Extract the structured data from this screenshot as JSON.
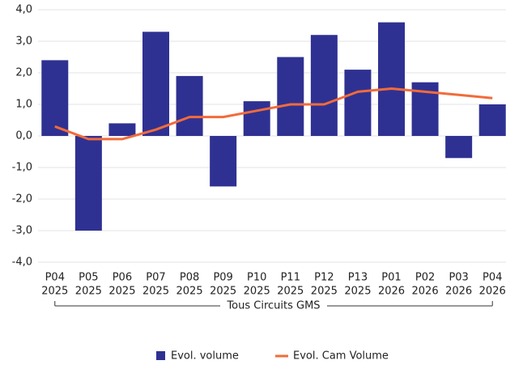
{
  "chart_data": {
    "type": "bar_line",
    "categories": [
      [
        "P04",
        "2025"
      ],
      [
        "P05",
        "2025"
      ],
      [
        "P06",
        "2025"
      ],
      [
        "P07",
        "2025"
      ],
      [
        "P08",
        "2025"
      ],
      [
        "P09",
        "2025"
      ],
      [
        "P10",
        "2025"
      ],
      [
        "P11",
        "2025"
      ],
      [
        "P12",
        "2025"
      ],
      [
        "P13",
        "2025"
      ],
      [
        "P01",
        "2026"
      ],
      [
        "P02",
        "2026"
      ],
      [
        "P03",
        "2026"
      ],
      [
        "P04",
        "2026"
      ]
    ],
    "group_label": "Tous Circuits GMS",
    "series": [
      {
        "name": "Evol. volume",
        "type": "bar",
        "color": "#2f3192",
        "values": [
          2.4,
          -3.0,
          0.4,
          3.3,
          1.9,
          -1.6,
          1.1,
          2.5,
          3.2,
          2.1,
          3.6,
          1.7,
          -0.7,
          1.0
        ]
      },
      {
        "name": "Evol. Cam Volume",
        "type": "line",
        "color": "#f26b3a",
        "values": [
          0.3,
          -0.1,
          -0.1,
          0.2,
          0.6,
          0.6,
          0.8,
          1.0,
          1.0,
          1.4,
          1.5,
          1.4,
          1.3,
          1.2
        ]
      }
    ],
    "ylim": [
      -4,
      4
    ],
    "yticks": [
      {
        "value": -4,
        "label": "-4,0"
      },
      {
        "value": -3,
        "label": "-3,0"
      },
      {
        "value": -2,
        "label": "-2,0"
      },
      {
        "value": -1,
        "label": "-1,0"
      },
      {
        "value": 0,
        "label": "0,0"
      },
      {
        "value": 1,
        "label": "1,0"
      },
      {
        "value": 2,
        "label": "2,0"
      },
      {
        "value": 3,
        "label": "3,0"
      },
      {
        "value": 4,
        "label": "4,0"
      }
    ],
    "grid": true,
    "legend": "bottom"
  }
}
